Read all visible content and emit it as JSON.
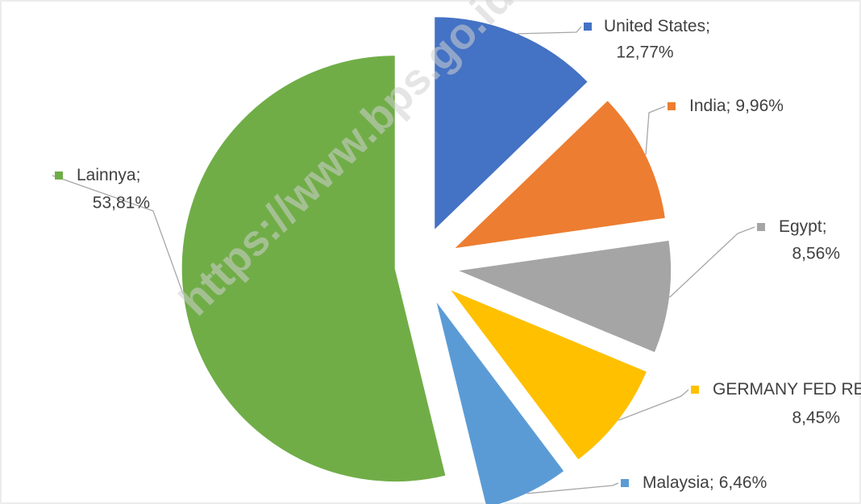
{
  "chart_data": {
    "type": "pie",
    "categories": [
      "United States",
      "India",
      "Egypt",
      "GERMANY FED REP OF",
      "Malaysia",
      "Lainnya"
    ],
    "values": [
      12.77,
      9.96,
      8.56,
      8.45,
      6.46,
      53.81
    ],
    "value_labels": [
      "12,77%",
      "9,96%",
      "8,56%",
      "8,45%",
      "6,46%",
      "53,81%"
    ],
    "label_separator": ";",
    "colors": [
      "#4472c4",
      "#ed7d31",
      "#a5a5a5",
      "#ffc000",
      "#5b9bd5",
      "#70ad47"
    ],
    "watermark": "https://www.bps.go.id"
  }
}
